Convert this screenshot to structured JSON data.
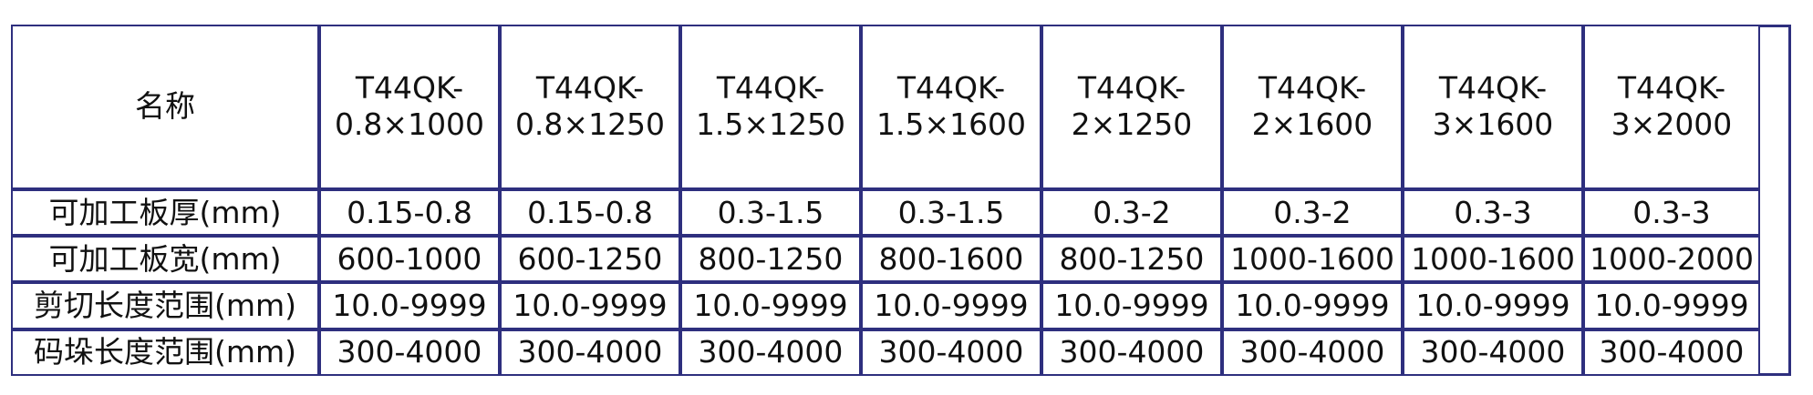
{
  "table": {
    "header": {
      "name_label": "名称",
      "models": [
        {
          "line1": "T44QK-",
          "line2": "0.8×1000"
        },
        {
          "line1": "T44QK-",
          "line2": "0.8×1250"
        },
        {
          "line1": "T44QK-",
          "line2": "1.5×1250"
        },
        {
          "line1": "T44QK-",
          "line2": "1.5×1600"
        },
        {
          "line1": "T44QK-",
          "line2": "2×1250"
        },
        {
          "line1": "T44QK-",
          "line2": "2×1600"
        },
        {
          "line1": "T44QK-",
          "line2": "3×1600"
        },
        {
          "line1": "T44QK-",
          "line2": "3×2000"
        }
      ]
    },
    "rows": [
      {
        "label": "可加工板厚(mm)",
        "values": [
          "0.15-0.8",
          "0.15-0.8",
          "0.3-1.5",
          "0.3-1.5",
          "0.3-2",
          "0.3-2",
          "0.3-3",
          "0.3-3"
        ]
      },
      {
        "label": "可加工板宽(mm)",
        "values": [
          "600-1000",
          "600-1250",
          "800-1250",
          "800-1600",
          "800-1250",
          "1000-1600",
          "1000-1600",
          "1000-2000"
        ]
      },
      {
        "label": "剪切长度范围(mm)",
        "values": [
          "10.0-9999",
          "10.0-9999",
          "10.0-9999",
          "10.0-9999",
          "10.0-9999",
          "10.0-9999",
          "10.0-9999",
          "10.0-9999"
        ]
      },
      {
        "label": "码垛长度范围(mm)",
        "values": [
          "300-4000",
          "300-4000",
          "300-4000",
          "300-4000",
          "300-4000",
          "300-4000",
          "300-4000",
          "300-4000"
        ]
      }
    ],
    "border_color": "#2e2f7e",
    "text_color": "#111111"
  }
}
